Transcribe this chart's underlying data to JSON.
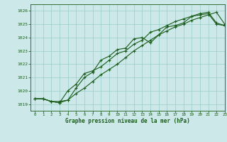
{
  "title": "Graphe pression niveau de la mer (hPa)",
  "xlim": [
    -0.5,
    23
  ],
  "ylim": [
    1018.5,
    1026.5
  ],
  "yticks": [
    1019,
    1020,
    1021,
    1022,
    1023,
    1024,
    1025,
    1026
  ],
  "xticks": [
    0,
    1,
    2,
    3,
    4,
    5,
    6,
    7,
    8,
    9,
    10,
    11,
    12,
    13,
    14,
    15,
    16,
    17,
    18,
    19,
    20,
    21,
    22,
    23
  ],
  "bg_color": "#cce8e8",
  "grid_color": "#99cccc",
  "line_color": "#1a5c1a",
  "series1": [
    [
      0,
      1019.4
    ],
    [
      1,
      1019.4
    ],
    [
      2,
      1019.2
    ],
    [
      3,
      1019.1
    ],
    [
      4,
      1019.3
    ],
    [
      5,
      1020.2
    ],
    [
      6,
      1021.0
    ],
    [
      7,
      1021.4
    ],
    [
      8,
      1022.3
    ],
    [
      9,
      1022.6
    ],
    [
      10,
      1023.1
    ],
    [
      11,
      1023.2
    ],
    [
      12,
      1023.9
    ],
    [
      13,
      1024.0
    ],
    [
      14,
      1023.6
    ],
    [
      15,
      1024.2
    ],
    [
      16,
      1024.8
    ],
    [
      17,
      1024.9
    ],
    [
      18,
      1025.1
    ],
    [
      19,
      1025.6
    ],
    [
      20,
      1025.7
    ],
    [
      21,
      1025.8
    ],
    [
      22,
      1025.0
    ],
    [
      23,
      1024.9
    ]
  ],
  "series2": [
    [
      0,
      1019.4
    ],
    [
      1,
      1019.4
    ],
    [
      2,
      1019.2
    ],
    [
      3,
      1019.1
    ],
    [
      4,
      1020.0
    ],
    [
      5,
      1020.5
    ],
    [
      6,
      1021.3
    ],
    [
      7,
      1021.5
    ],
    [
      8,
      1021.8
    ],
    [
      9,
      1022.3
    ],
    [
      10,
      1022.8
    ],
    [
      11,
      1023.0
    ],
    [
      12,
      1023.5
    ],
    [
      13,
      1023.8
    ],
    [
      14,
      1024.4
    ],
    [
      15,
      1024.6
    ],
    [
      16,
      1024.9
    ],
    [
      17,
      1025.2
    ],
    [
      18,
      1025.4
    ],
    [
      19,
      1025.6
    ],
    [
      20,
      1025.8
    ],
    [
      21,
      1025.9
    ],
    [
      22,
      1025.1
    ],
    [
      23,
      1024.9
    ]
  ],
  "series3": [
    [
      0,
      1019.4
    ],
    [
      1,
      1019.4
    ],
    [
      2,
      1019.2
    ],
    [
      3,
      1019.2
    ],
    [
      4,
      1019.3
    ],
    [
      5,
      1019.8
    ],
    [
      6,
      1020.2
    ],
    [
      7,
      1020.7
    ],
    [
      8,
      1021.2
    ],
    [
      9,
      1021.6
    ],
    [
      10,
      1022.0
    ],
    [
      11,
      1022.5
    ],
    [
      12,
      1023.0
    ],
    [
      13,
      1023.4
    ],
    [
      14,
      1023.8
    ],
    [
      15,
      1024.2
    ],
    [
      16,
      1024.5
    ],
    [
      17,
      1024.8
    ],
    [
      18,
      1025.0
    ],
    [
      19,
      1025.3
    ],
    [
      20,
      1025.5
    ],
    [
      21,
      1025.7
    ],
    [
      22,
      1025.9
    ],
    [
      23,
      1025.0
    ]
  ],
  "figsize": [
    3.2,
    2.0
  ],
  "dpi": 100
}
